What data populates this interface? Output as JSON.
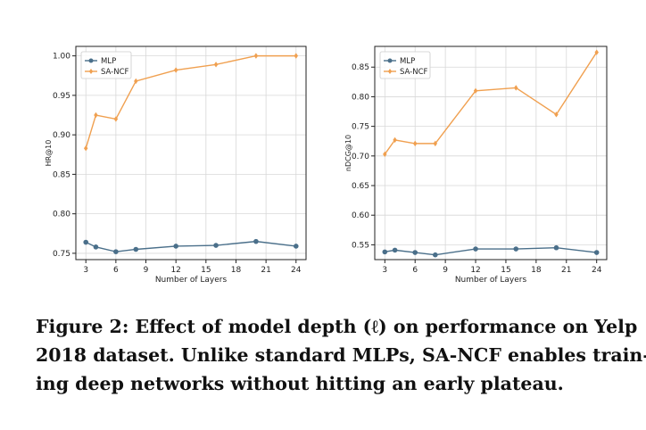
{
  "chart_data": [
    {
      "type": "line",
      "title": "",
      "xlabel": "Number of Layers",
      "ylabel": "HR@10",
      "x": [
        3,
        4,
        6,
        8,
        12,
        16,
        20,
        24
      ],
      "xticks": [
        "3",
        "6",
        "9",
        "12",
        "15",
        "18",
        "21",
        "24"
      ],
      "yticks": [
        "0.75",
        "0.80",
        "0.85",
        "0.90",
        "0.95",
        "1.00"
      ],
      "xlim": [
        2,
        25
      ],
      "ylim": [
        0.742,
        1.012
      ],
      "grid": true,
      "legend": "top-left",
      "series": [
        {
          "name": "MLP",
          "color": "#4a6f8a",
          "marker": "circle",
          "values": [
            0.764,
            0.758,
            0.752,
            0.755,
            0.759,
            0.76,
            0.765,
            0.759
          ]
        },
        {
          "name": "SA-NCF",
          "color": "#f0a050",
          "marker": "diamond",
          "values": [
            0.883,
            0.925,
            0.92,
            0.968,
            0.982,
            0.989,
            1.0,
            1.0
          ]
        }
      ]
    },
    {
      "type": "line",
      "title": "",
      "xlabel": "Number of Layers",
      "ylabel": "nDCG@10",
      "x": [
        3,
        4,
        6,
        8,
        12,
        16,
        20,
        24
      ],
      "xticks": [
        "3",
        "6",
        "9",
        "12",
        "15",
        "18",
        "21",
        "24"
      ],
      "yticks": [
        "0.55",
        "0.60",
        "0.65",
        "0.70",
        "0.75",
        "0.80",
        "0.85"
      ],
      "xlim": [
        2,
        25
      ],
      "ylim": [
        0.525,
        0.885
      ],
      "grid": true,
      "legend": "top-left",
      "series": [
        {
          "name": "MLP",
          "color": "#4a6f8a",
          "marker": "circle",
          "values": [
            0.538,
            0.541,
            0.537,
            0.533,
            0.543,
            0.543,
            0.545,
            0.537
          ]
        },
        {
          "name": "SA-NCF",
          "color": "#f0a050",
          "marker": "diamond",
          "values": [
            0.703,
            0.727,
            0.721,
            0.721,
            0.81,
            0.815,
            0.77,
            0.875
          ]
        }
      ]
    }
  ],
  "caption": {
    "line1": "Figure 2: Effect of model depth (ℓ) on performance on Yelp",
    "line2": "2018 dataset. Unlike standard MLPs, SA-NCF enables train-",
    "line3": "ing deep networks without hitting an early plateau."
  }
}
